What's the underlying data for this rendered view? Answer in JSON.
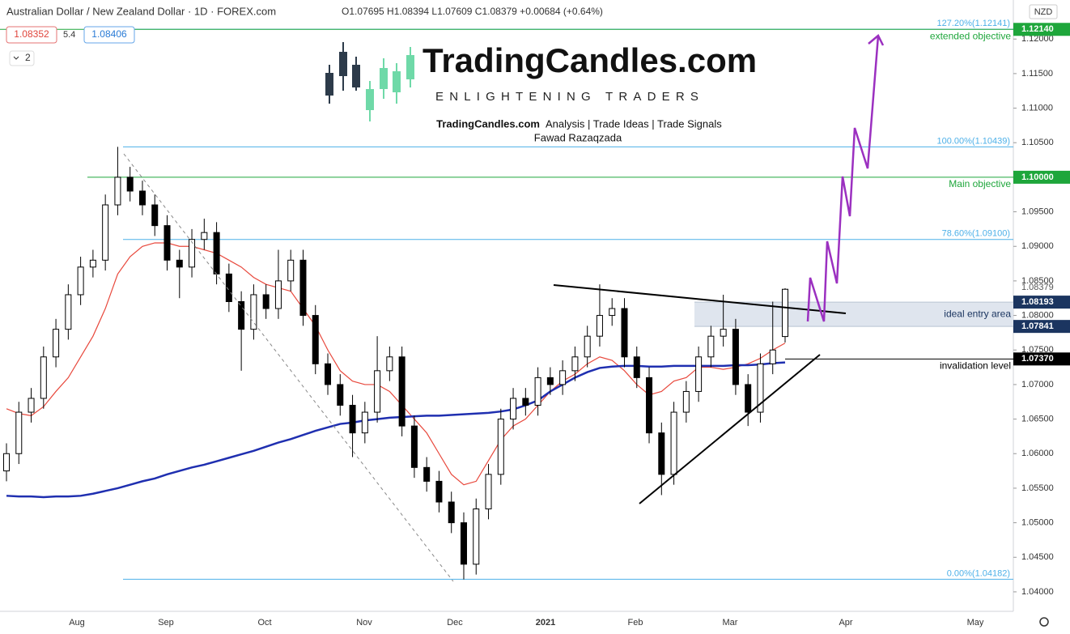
{
  "chart_data": {
    "type": "candlestick",
    "title": "Australian Dollar / New Zealand Dollar · 1D · FOREX.com",
    "ohlc_text": "O1.07695 H1.08394 L1.07609 C1.08379 +0.00684 (+0.64%)",
    "bid": "1.08352",
    "spread": "5.4",
    "ask": "1.08406",
    "indicators_count": "2",
    "currency": "NZD",
    "branding": {
      "name": "TradingCandles.com",
      "tagline": "ENLIGHTENING TRADERS",
      "services_name": "TradingCandles.com",
      "services": "Analysis | Trade Ideas | Trade Signals",
      "author": "Fawad Razaqzada"
    },
    "x_labels": [
      "Aug",
      "Sep",
      "Oct",
      "Nov",
      "Dec",
      "2021",
      "Feb",
      "Mar",
      "Apr",
      "May"
    ],
    "up_color": "#ffffff",
    "down_color": "#000000",
    "candles": {
      "open": [
        1.0575,
        1.06,
        1.066,
        1.068,
        1.074,
        1.078,
        1.083,
        1.087,
        1.088,
        1.096,
        1.1,
        1.098,
        1.096,
        1.093,
        1.088,
        1.087,
        1.091,
        1.092,
        1.086,
        1.082,
        1.078,
        1.083,
        1.081,
        1.085,
        1.088,
        1.08,
        1.073,
        1.07,
        1.067,
        1.063,
        1.066,
        1.072,
        1.074,
        1.064,
        1.058,
        1.056,
        1.053,
        1.05,
        1.044,
        1.052,
        1.057,
        1.065,
        1.068,
        1.067,
        1.071,
        1.07,
        1.072,
        1.074,
        1.077,
        1.08,
        1.081,
        1.074,
        1.071,
        1.063,
        1.057,
        1.066,
        1.069,
        1.074,
        1.077,
        1.078,
        1.07,
        1.066,
        1.073,
        1.07695
      ],
      "high": [
        1.0615,
        1.0675,
        1.0695,
        1.0755,
        1.0795,
        1.0845,
        1.0885,
        1.0895,
        1.0975,
        1.1044,
        1.1015,
        1.0995,
        1.0975,
        1.0945,
        1.0895,
        1.0925,
        1.094,
        1.0935,
        1.0875,
        1.0835,
        1.0845,
        1.0845,
        1.0895,
        1.0895,
        1.0895,
        1.0815,
        1.0745,
        1.0715,
        1.0685,
        1.0675,
        1.077,
        1.0755,
        1.0755,
        1.0655,
        1.0595,
        1.0575,
        1.0545,
        1.0515,
        1.0535,
        1.0585,
        1.0665,
        1.0695,
        1.0695,
        1.0725,
        1.0725,
        1.0735,
        1.0755,
        1.0785,
        1.0845,
        1.0825,
        1.0825,
        1.0755,
        1.0725,
        1.0645,
        1.0675,
        1.0705,
        1.0755,
        1.0785,
        1.083,
        1.0795,
        1.0715,
        1.0745,
        1.082,
        1.08394
      ],
      "low": [
        1.056,
        1.0585,
        1.0645,
        1.0665,
        1.0725,
        1.0765,
        1.0815,
        1.0855,
        1.0865,
        1.0945,
        1.0965,
        1.0945,
        1.0915,
        1.0865,
        1.0825,
        1.0855,
        1.0895,
        1.0845,
        1.0805,
        1.072,
        1.0765,
        1.0795,
        1.0795,
        1.0835,
        1.0785,
        1.0715,
        1.0685,
        1.0655,
        1.0595,
        1.0615,
        1.0645,
        1.0705,
        1.0625,
        1.0565,
        1.0545,
        1.0515,
        1.0485,
        1.0418,
        1.0425,
        1.0505,
        1.0555,
        1.0635,
        1.0655,
        1.0655,
        1.0685,
        1.0685,
        1.0705,
        1.0725,
        1.0755,
        1.0785,
        1.0725,
        1.0695,
        1.0615,
        1.054,
        1.0555,
        1.0645,
        1.0675,
        1.0725,
        1.0755,
        1.0685,
        1.064,
        1.0645,
        1.0715,
        1.07609
      ],
      "close": [
        1.06,
        1.066,
        1.068,
        1.074,
        1.078,
        1.083,
        1.087,
        1.088,
        1.096,
        1.1,
        1.098,
        1.096,
        1.093,
        1.088,
        1.087,
        1.091,
        1.092,
        1.086,
        1.082,
        1.078,
        1.083,
        1.081,
        1.085,
        1.088,
        1.08,
        1.073,
        1.07,
        1.067,
        1.063,
        1.066,
        1.072,
        1.074,
        1.064,
        1.058,
        1.056,
        1.053,
        1.05,
        1.044,
        1.052,
        1.057,
        1.065,
        1.068,
        1.067,
        1.071,
        1.07,
        1.072,
        1.074,
        1.077,
        1.08,
        1.081,
        1.074,
        1.071,
        1.063,
        1.057,
        1.066,
        1.069,
        1.074,
        1.077,
        1.078,
        1.07,
        1.066,
        1.073,
        1.075,
        1.08379
      ]
    },
    "lines": [
      {
        "color": "#e8483c",
        "values": [
          1.0665,
          1.0658,
          1.0655,
          1.0668,
          1.069,
          1.071,
          1.074,
          1.077,
          1.081,
          1.086,
          1.0885,
          1.09,
          1.0905,
          1.0905,
          1.09,
          1.09,
          1.0895,
          1.089,
          1.088,
          1.087,
          1.0855,
          1.0845,
          1.084,
          1.0835,
          1.081,
          1.0785,
          1.075,
          1.072,
          1.0705,
          1.07,
          1.07,
          1.069,
          1.067,
          1.065,
          1.063,
          1.06,
          1.057,
          1.0555,
          1.056,
          1.059,
          1.062,
          1.064,
          1.065,
          1.067,
          1.069,
          1.0705,
          1.0715,
          1.073,
          1.074,
          1.0735,
          1.072,
          1.07,
          1.0685,
          1.069,
          1.0705,
          1.071,
          1.0725,
          1.0725,
          1.0722,
          1.0725,
          1.073,
          1.0738,
          1.075,
          1.076
        ]
      },
      {
        "color": "#1f2fb0",
        "values": [
          1.0539,
          1.0538,
          1.0538,
          1.0537,
          1.0538,
          1.0538,
          1.0539,
          1.0542,
          1.0546,
          1.055,
          1.0555,
          1.056,
          1.0564,
          1.057,
          1.0575,
          1.058,
          1.0584,
          1.0589,
          1.0594,
          1.0599,
          1.0604,
          1.061,
          1.0616,
          1.0621,
          1.0627,
          1.0633,
          1.0638,
          1.0643,
          1.0645,
          1.0648,
          1.065,
          1.0652,
          1.0653,
          1.0654,
          1.0655,
          1.0655,
          1.0656,
          1.0657,
          1.0658,
          1.0659,
          1.0661,
          1.0664,
          1.067,
          1.0677,
          1.069,
          1.07,
          1.071,
          1.0718,
          1.0724,
          1.0726,
          1.0727,
          1.0727,
          1.0726,
          1.0726,
          1.0727,
          1.0727,
          1.0727,
          1.0727,
          1.0727,
          1.0728,
          1.0728,
          1.0729,
          1.0731,
          1.0732
        ]
      }
    ],
    "last_price": 1.08379,
    "fib_color": "#4db0e8",
    "fib_levels": [
      {
        "value": 1.12141,
        "label": "127.20%(1.12141)"
      },
      {
        "value": 1.10439,
        "label": "100.00%(1.10439)"
      },
      {
        "value": 1.091,
        "label": "78.60%(1.09100)"
      },
      {
        "value": 1.04182,
        "label": "0.00%(1.04182)"
      }
    ],
    "levels": [
      {
        "value": 1.1214,
        "price_label": "1.12140",
        "text": "extended objective",
        "color": "#1ea63b"
      },
      {
        "value": 1.1,
        "price_label": "1.10000",
        "text": "Main objective",
        "color": "#1ea63b"
      },
      {
        "value": 1.0737,
        "price_label": "1.07370",
        "text": "invalidation level",
        "color": "#000000"
      }
    ],
    "entry_zone": {
      "low": 1.07841,
      "high": 1.08193,
      "low_label": "1.07841",
      "high_label": "1.08193",
      "text": "ideal entry area",
      "color": "#1b3560"
    },
    "ylim": [
      1.03718,
      1.12565
    ],
    "yticks": [
      {
        "value": 1.04,
        "label": "1.04000"
      },
      {
        "value": 1.045,
        "label": "1.04500"
      },
      {
        "value": 1.05,
        "label": "1.05000"
      },
      {
        "value": 1.055,
        "label": "1.05500"
      },
      {
        "value": 1.06,
        "label": "1.06000"
      },
      {
        "value": 1.065,
        "label": "1.06500"
      },
      {
        "value": 1.07,
        "label": "1.07000"
      },
      {
        "value": 1.075,
        "label": "1.07500"
      },
      {
        "value": 1.08,
        "label": "1.08000"
      },
      {
        "value": 1.085,
        "label": "1.08500"
      },
      {
        "value": 1.09,
        "label": "1.09000"
      },
      {
        "value": 1.095,
        "label": "1.09500"
      },
      {
        "value": 1.1,
        "label": "1.10000"
      },
      {
        "value": 1.105,
        "label": "1.10500"
      },
      {
        "value": 1.11,
        "label": "1.11000"
      },
      {
        "value": 1.115,
        "label": "1.11500"
      },
      {
        "value": 1.12,
        "label": "1.12000"
      }
    ],
    "grid": false
  }
}
